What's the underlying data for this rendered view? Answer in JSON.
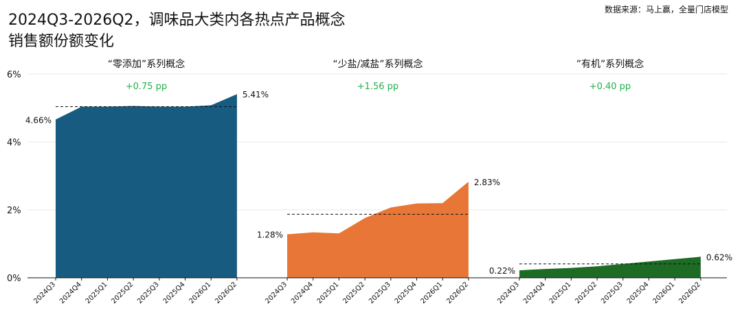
{
  "title_line1": "2024Q3-2026Q2，调味品大类内各热点产品概念",
  "title_line2": "销售额份额变化",
  "source": "数据来源：马上赢，全量门店模型",
  "chart_data": {
    "type": "area",
    "ylim": [
      0,
      6
    ],
    "y_ticks": [
      0,
      2,
      4,
      6
    ],
    "y_tick_labels": [
      "0%",
      "2%",
      "4%",
      "6%"
    ],
    "categories": [
      "2024Q3",
      "2024Q4",
      "2025Q1",
      "2025Q2",
      "2025Q3",
      "2025Q4",
      "2026Q1",
      "2026Q2"
    ],
    "grid": true,
    "panels": [
      {
        "name": "“零添加”系列概念",
        "change_label": "+0.75 pp",
        "color": "#185b80",
        "values": [
          4.66,
          5.04,
          5.04,
          5.06,
          5.04,
          5.04,
          5.08,
          5.41
        ],
        "reference_line": 5.04,
        "first_label": "4.66%",
        "last_label": "5.41%"
      },
      {
        "name": "“少盐/减盐”系列概念",
        "change_label": "+1.56 pp",
        "color": "#e87636",
        "values": [
          1.28,
          1.34,
          1.31,
          1.76,
          2.07,
          2.19,
          2.2,
          2.83
        ],
        "reference_line": 1.87,
        "first_label": "1.28%",
        "last_label": "2.83%"
      },
      {
        "name": "”有机”系列概念",
        "change_label": "+0.40 pp",
        "color": "#1e6b25",
        "values": [
          0.22,
          0.26,
          0.29,
          0.34,
          0.41,
          0.48,
          0.55,
          0.62
        ],
        "reference_line": 0.41,
        "first_label": "0.22%",
        "last_label": "0.62%"
      }
    ],
    "change_color": "#22b04a"
  }
}
